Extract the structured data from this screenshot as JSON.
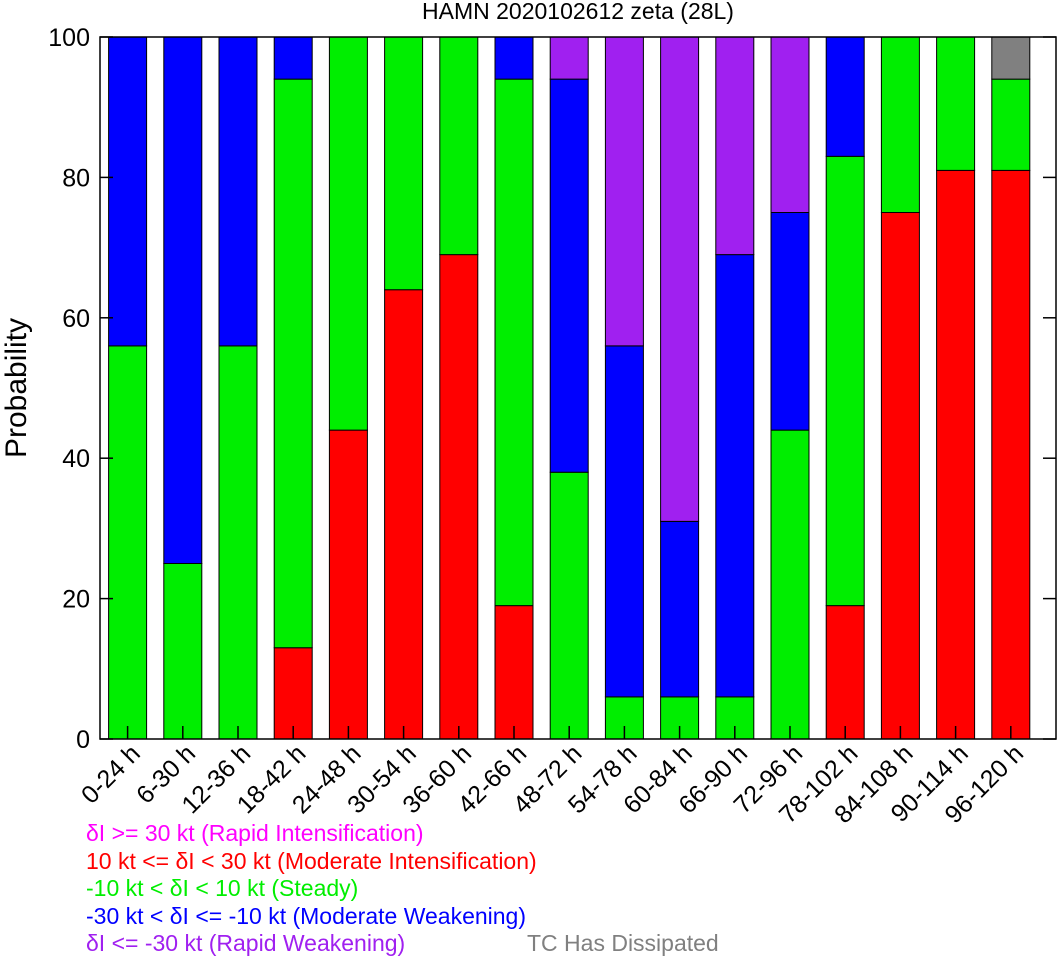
{
  "chart_data": {
    "type": "bar",
    "stacked": true,
    "title": "HAMN 2020102612 zeta (28L)",
    "xlabel": "",
    "ylabel": "Probability",
    "ylim": [
      0,
      100
    ],
    "yticks": [
      0,
      20,
      40,
      60,
      80,
      100
    ],
    "grid": false,
    "categories": [
      "0-24 h",
      "6-30 h",
      "12-36 h",
      "18-42 h",
      "24-48 h",
      "30-54 h",
      "36-60 h",
      "42-66 h",
      "48-72 h",
      "54-78 h",
      "60-84 h",
      "66-90 h",
      "72-96 h",
      "78-102 h",
      "84-108 h",
      "90-114 h",
      "96-120 h"
    ],
    "series": [
      {
        "name": "Rapid Intensification",
        "color": "#ff00ff",
        "values": [
          0,
          0,
          0,
          0,
          0,
          0,
          0,
          0,
          0,
          0,
          0,
          0,
          0,
          0,
          0,
          0,
          0
        ]
      },
      {
        "name": "Moderate Intensification",
        "color": "#ff0000",
        "values": [
          0,
          0,
          0,
          13,
          44,
          64,
          69,
          19,
          0,
          0,
          0,
          0,
          0,
          19,
          75,
          81,
          81
        ]
      },
      {
        "name": "Steady",
        "color": "#00ee00",
        "values": [
          56,
          25,
          56,
          81,
          56,
          36,
          31,
          75,
          38,
          6,
          6,
          6,
          44,
          64,
          25,
          19,
          13
        ]
      },
      {
        "name": "Moderate Weakening",
        "color": "#0000ff",
        "values": [
          44,
          75,
          44,
          6,
          0,
          0,
          0,
          6,
          56,
          50,
          25,
          63,
          31,
          17,
          0,
          0,
          0
        ]
      },
      {
        "name": "Rapid Weakening",
        "color": "#a020f0",
        "values": [
          0,
          0,
          0,
          0,
          0,
          0,
          0,
          0,
          6,
          44,
          69,
          31,
          25,
          0,
          0,
          0,
          0
        ]
      },
      {
        "name": "TC Has Dissipated",
        "color": "#808080",
        "values": [
          0,
          0,
          0,
          0,
          0,
          0,
          0,
          0,
          0,
          0,
          0,
          0,
          0,
          0,
          0,
          0,
          6
        ]
      }
    ],
    "legend": {
      "placement": "bottom-left",
      "entries": [
        {
          "text": "δI >= 30 kt (Rapid Intensification)",
          "color": "#ff00ff"
        },
        {
          "text": "10 kt <= δI < 30 kt (Moderate Intensification)",
          "color": "#ff0000"
        },
        {
          "text": "-10 kt < δI < 10 kt (Steady)",
          "color": "#00ee00"
        },
        {
          "text": "-30 kt < δI <= -10 kt (Moderate Weakening)",
          "color": "#0000ff"
        },
        {
          "text": "δI <= -30 kt (Rapid Weakening)",
          "color": "#a020f0"
        },
        {
          "text": "TC Has Dissipated",
          "color": "#808080"
        }
      ]
    }
  }
}
